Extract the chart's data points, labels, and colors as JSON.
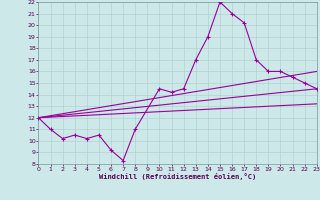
{
  "xlabel": "Windchill (Refroidissement éolien,°C)",
  "bg_color": "#cce8e8",
  "grid_color": "#aacccc",
  "line_color": "#990099",
  "xlim": [
    0,
    23
  ],
  "ylim": [
    8,
    22
  ],
  "yticks": [
    8,
    9,
    10,
    11,
    12,
    13,
    14,
    15,
    16,
    17,
    18,
    19,
    20,
    21,
    22
  ],
  "xticks": [
    0,
    1,
    2,
    3,
    4,
    5,
    6,
    7,
    8,
    9,
    10,
    11,
    12,
    13,
    14,
    15,
    16,
    17,
    18,
    19,
    20,
    21,
    22,
    23
  ],
  "main_x": [
    0,
    1,
    2,
    3,
    4,
    5,
    6,
    7,
    8,
    10,
    11,
    12,
    13,
    14,
    15,
    16,
    17,
    18,
    19,
    20,
    21,
    22,
    23
  ],
  "main_y": [
    12.0,
    11.0,
    10.2,
    10.5,
    10.2,
    10.5,
    9.2,
    8.3,
    11.0,
    14.5,
    14.2,
    14.5,
    17.0,
    19.0,
    22.0,
    21.0,
    20.2,
    17.0,
    16.0,
    16.0,
    15.5,
    15.0,
    14.5
  ],
  "line1_x": [
    0,
    23
  ],
  "line1_y": [
    12.0,
    13.2
  ],
  "line2_x": [
    0,
    23
  ],
  "line2_y": [
    12.0,
    14.5
  ],
  "line3_x": [
    0,
    23
  ],
  "line3_y": [
    12.0,
    16.0
  ]
}
